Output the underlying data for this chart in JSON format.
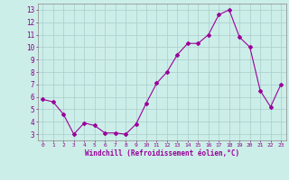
{
  "x": [
    0,
    1,
    2,
    3,
    4,
    5,
    6,
    7,
    8,
    9,
    10,
    11,
    12,
    13,
    14,
    15,
    16,
    17,
    18,
    19,
    20,
    21,
    22,
    23
  ],
  "y": [
    5.8,
    5.6,
    4.6,
    3.0,
    3.9,
    3.7,
    3.1,
    3.1,
    3.0,
    3.8,
    5.5,
    7.1,
    8.0,
    9.4,
    10.3,
    10.3,
    11.0,
    12.6,
    13.0,
    10.8,
    10.0,
    6.5,
    5.2,
    7.0
  ],
  "line_color": "#990099",
  "marker": "D",
  "marker_size": 2.0,
  "xlabel": "Windchill (Refroidissement éolien,°C)",
  "xlabel_color": "#990099",
  "ylabel_ticks": [
    3,
    4,
    5,
    6,
    7,
    8,
    9,
    10,
    11,
    12,
    13
  ],
  "xtick_labels": [
    "0",
    "1",
    "2",
    "3",
    "4",
    "5",
    "6",
    "7",
    "8",
    "9",
    "10",
    "11",
    "12",
    "13",
    "14",
    "15",
    "16",
    "17",
    "18",
    "19",
    "20",
    "21",
    "22",
    "23"
  ],
  "ylim": [
    2.5,
    13.5
  ],
  "xlim": [
    -0.5,
    23.5
  ],
  "background_color": "#cceee8",
  "grid_color": "#aacccc",
  "tick_color": "#880088",
  "spine_color": "#888888"
}
